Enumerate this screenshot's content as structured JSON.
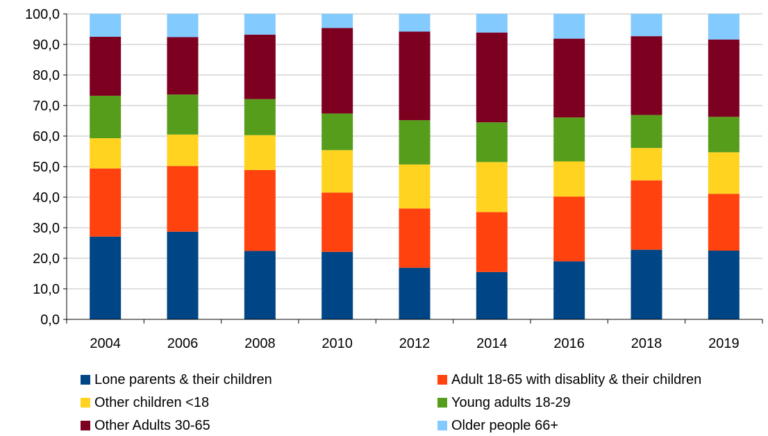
{
  "chart_data": {
    "type": "bar",
    "stacked": true,
    "categories": [
      "2004",
      "2006",
      "2008",
      "2010",
      "2012",
      "2014",
      "2016",
      "2018",
      "2019"
    ],
    "ylim": [
      0,
      100
    ],
    "yticks": [
      "0,0",
      "10,0",
      "20,0",
      "30,0",
      "40,0",
      "50,0",
      "60,0",
      "70,0",
      "80,0",
      "90,0",
      "100,0"
    ],
    "grid": true,
    "legend_position": "bottom",
    "series": [
      {
        "name": "Lone parents & their children",
        "color": "#004586",
        "values": [
          27.1,
          28.7,
          22.4,
          22.1,
          16.9,
          15.5,
          19.0,
          22.8,
          22.5
        ]
      },
      {
        "name": "Adult 18-65 with disablity & their children",
        "color": "#ff420e",
        "values": [
          22.3,
          21.5,
          26.5,
          19.4,
          19.4,
          19.6,
          21.2,
          22.7,
          18.6
        ]
      },
      {
        "name": "Other children <18",
        "color": "#ffd320",
        "values": [
          9.9,
          10.3,
          11.4,
          13.9,
          14.4,
          16.4,
          11.5,
          10.6,
          13.6
        ]
      },
      {
        "name": "Young adults 18-29",
        "color": "#579d1c",
        "values": [
          13.9,
          13.1,
          11.8,
          12.0,
          14.5,
          13.0,
          14.4,
          10.8,
          11.6
        ]
      },
      {
        "name": "Other Adults 30-65",
        "color": "#7e0021",
        "values": [
          19.3,
          18.8,
          21.1,
          28.0,
          29.0,
          29.4,
          25.8,
          25.8,
          25.3
        ]
      },
      {
        "name": "Older people  66+",
        "color": "#83caff",
        "values": [
          7.5,
          7.6,
          6.8,
          4.6,
          5.8,
          6.1,
          8.1,
          7.3,
          8.4
        ]
      }
    ]
  }
}
